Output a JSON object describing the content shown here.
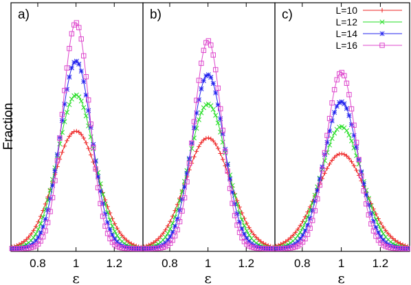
{
  "chart_data": {
    "type": "line",
    "ylabel": "Fraction",
    "xlabel": "ε",
    "xlim": [
      0.66,
      1.35
    ],
    "xticks": [
      "0.8",
      "1",
      "1.2"
    ],
    "xtick_values": [
      0.8,
      1.0,
      1.2
    ],
    "yticks_labeled": false,
    "legend": {
      "placement": "top-right",
      "panel": "c)"
    },
    "panels": [
      {
        "label": "a)",
        "series": [
          {
            "name": "L=10",
            "color": "#ee2222",
            "marker": "plus",
            "peak": 0.52,
            "width": 0.115
          },
          {
            "name": "L=12",
            "color": "#22dd22",
            "marker": "cross",
            "peak": 0.68,
            "width": 0.097
          },
          {
            "name": "L=14",
            "color": "#2222ee",
            "marker": "star",
            "peak": 0.83,
            "width": 0.083
          },
          {
            "name": "L=16",
            "color": "#dd44cc",
            "marker": "square",
            "peak": 1.0,
            "width": 0.071
          }
        ]
      },
      {
        "label": "b)",
        "series": [
          {
            "name": "L=10",
            "color": "#ee2222",
            "marker": "plus",
            "peak": 0.49,
            "width": 0.118
          },
          {
            "name": "L=12",
            "color": "#22dd22",
            "marker": "cross",
            "peak": 0.64,
            "width": 0.099
          },
          {
            "name": "L=14",
            "color": "#2222ee",
            "marker": "star",
            "peak": 0.77,
            "width": 0.085
          },
          {
            "name": "L=16",
            "color": "#dd44cc",
            "marker": "square",
            "peak": 0.92,
            "width": 0.073
          }
        ]
      },
      {
        "label": "c)",
        "series": [
          {
            "name": "L=10",
            "color": "#ee2222",
            "marker": "plus",
            "peak": 0.42,
            "width": 0.125
          },
          {
            "name": "L=12",
            "color": "#22dd22",
            "marker": "cross",
            "peak": 0.54,
            "width": 0.105
          },
          {
            "name": "L=14",
            "color": "#2222ee",
            "marker": "star",
            "peak": 0.65,
            "width": 0.09
          },
          {
            "name": "L=16",
            "color": "#dd44cc",
            "marker": "square",
            "peak": 0.78,
            "width": 0.077
          }
        ]
      }
    ]
  }
}
